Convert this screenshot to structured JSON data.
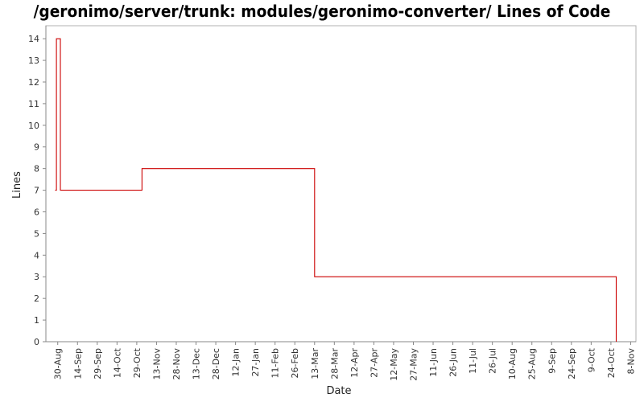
{
  "chart_data": {
    "type": "line",
    "title": "/geronimo/server/trunk: modules/geronimo-converter/ Lines of Code",
    "xlabel": "Date",
    "ylabel": "Lines",
    "ylim": [
      0,
      14.6
    ],
    "xlim": [
      "2005-08-21",
      "2006-11-12"
    ],
    "grid": false,
    "line_color": "#cc0000",
    "x_tick_labels": [
      "30-Aug",
      "14-Sep",
      "29-Sep",
      "14-Oct",
      "29-Oct",
      "13-Nov",
      "28-Nov",
      "13-Dec",
      "28-Dec",
      "12-Jan",
      "27-Jan",
      "11-Feb",
      "26-Feb",
      "13-Mar",
      "28-Mar",
      "12-Apr",
      "27-Apr",
      "12-May",
      "27-May",
      "11-Jun",
      "26-Jun",
      "11-Jul",
      "26-Jul",
      "10-Aug",
      "25-Aug",
      "9-Sep",
      "24-Sep",
      "9-Oct",
      "24-Oct",
      "8-Nov"
    ],
    "x_tick_dates": [
      "2005-08-30",
      "2005-09-14",
      "2005-09-29",
      "2005-10-14",
      "2005-10-29",
      "2005-11-13",
      "2005-11-28",
      "2005-12-13",
      "2005-12-28",
      "2006-01-12",
      "2006-01-27",
      "2006-02-11",
      "2006-02-26",
      "2006-03-13",
      "2006-03-28",
      "2006-04-12",
      "2006-04-27",
      "2006-05-12",
      "2006-05-27",
      "2006-06-11",
      "2006-06-26",
      "2006-07-11",
      "2006-07-26",
      "2006-08-10",
      "2006-08-25",
      "2006-09-09",
      "2006-09-24",
      "2006-10-09",
      "2006-10-24",
      "2006-11-08"
    ],
    "y_ticks": [
      0,
      1,
      2,
      3,
      4,
      5,
      6,
      7,
      8,
      9,
      10,
      11,
      12,
      13,
      14
    ],
    "series": [
      {
        "x": [
          "2005-08-28",
          "2005-08-29",
          "2005-08-29",
          "2005-09-01",
          "2005-09-01",
          "2005-11-02",
          "2005-11-02",
          "2006-03-13",
          "2006-03-13",
          "2006-10-28",
          "2006-10-28"
        ],
        "y": [
          7,
          7,
          14,
          14,
          7,
          7,
          8,
          8,
          3,
          3,
          0
        ]
      }
    ]
  }
}
